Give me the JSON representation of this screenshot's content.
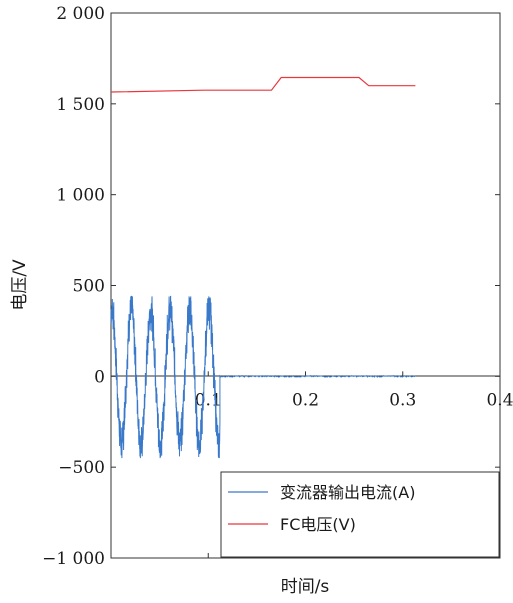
{
  "chart_data": {
    "type": "line",
    "xlabel": "时间/s",
    "ylabel": "电压/V",
    "xlim": [
      0,
      0.4
    ],
    "ylim": [
      -1000,
      2000
    ],
    "x_ticks": [
      0,
      0.1,
      0.2,
      0.3,
      0.4
    ],
    "x_tick_labels": [
      "0",
      "0.1",
      "0.2",
      "0.3",
      "0.4"
    ],
    "y_ticks": [
      -1000,
      -500,
      0,
      500,
      1000,
      1500,
      2000
    ],
    "y_tick_labels": [
      "−1 000",
      "−500",
      "0",
      "500",
      "1 000",
      "1 500",
      "2 000"
    ],
    "grid": false,
    "legend_position": "bottom-right",
    "series": [
      {
        "name": "变流器输出电流(A)",
        "color": "#3a78c9",
        "kind": "oscillation",
        "oscillation": {
          "x_start": 0.0,
          "x_end": 0.112,
          "frequency_hz": 50,
          "amplitude": 370
        },
        "x": [
          0.0,
          0.112,
          0.115,
          0.313
        ],
        "y": [
          300,
          0,
          0,
          0
        ]
      },
      {
        "name": "FC电压(V)",
        "color": "#e8383d",
        "x": [
          0.0,
          0.095,
          0.165,
          0.175,
          0.255,
          0.265,
          0.313
        ],
        "y": [
          1565,
          1575,
          1575,
          1645,
          1645,
          1600,
          1600
        ]
      }
    ]
  }
}
